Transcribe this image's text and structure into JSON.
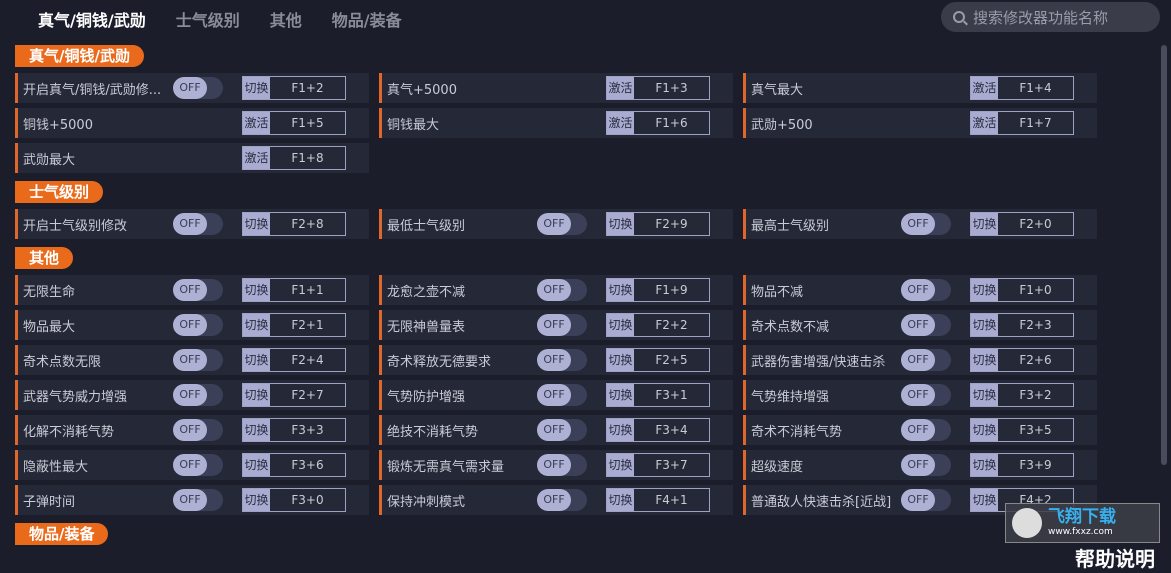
{
  "tabs": [
    "真气/铜钱/武勋",
    "士气级别",
    "其他",
    "物品/装备"
  ],
  "search": {
    "placeholder": "搜索修改器功能名称"
  },
  "sections": [
    {
      "title": "真气/铜钱/武勋",
      "items": [
        {
          "label": "开启真气/铜钱/武勋修...",
          "toggle": "OFF",
          "action": "切换",
          "key": "F1+2"
        },
        {
          "label": "真气+5000",
          "action": "激活",
          "key": "F1+3"
        },
        {
          "label": "真气最大",
          "action": "激活",
          "key": "F1+4"
        },
        {
          "label": "铜钱+5000",
          "action": "激活",
          "key": "F1+5"
        },
        {
          "label": "铜钱最大",
          "action": "激活",
          "key": "F1+6"
        },
        {
          "label": "武勋+500",
          "action": "激活",
          "key": "F1+7"
        },
        {
          "label": "武勋最大",
          "action": "激活",
          "key": "F1+8"
        }
      ]
    },
    {
      "title": "士气级别",
      "items": [
        {
          "label": "开启士气级别修改",
          "toggle": "OFF",
          "action": "切换",
          "key": "F2+8"
        },
        {
          "label": "最低士气级别",
          "toggle": "OFF",
          "action": "切换",
          "key": "F2+9"
        },
        {
          "label": "最高士气级别",
          "toggle": "OFF",
          "action": "切换",
          "key": "F2+0"
        }
      ]
    },
    {
      "title": "其他",
      "items": [
        {
          "label": "无限生命",
          "toggle": "OFF",
          "action": "切换",
          "key": "F1+1"
        },
        {
          "label": "龙愈之壶不减",
          "toggle": "OFF",
          "action": "切换",
          "key": "F1+9"
        },
        {
          "label": "物品不减",
          "toggle": "OFF",
          "action": "切换",
          "key": "F1+0"
        },
        {
          "label": "物品最大",
          "toggle": "OFF",
          "action": "切换",
          "key": "F2+1"
        },
        {
          "label": "无限神兽量表",
          "toggle": "OFF",
          "action": "切换",
          "key": "F2+2"
        },
        {
          "label": "奇术点数不减",
          "toggle": "OFF",
          "action": "切换",
          "key": "F2+3"
        },
        {
          "label": "奇术点数无限",
          "toggle": "OFF",
          "action": "切换",
          "key": "F2+4"
        },
        {
          "label": "奇术释放无德要求",
          "toggle": "OFF",
          "action": "切换",
          "key": "F2+5"
        },
        {
          "label": "武器伤害增强/快速击杀",
          "toggle": "OFF",
          "action": "切换",
          "key": "F2+6"
        },
        {
          "label": "武器气势威力增强",
          "toggle": "OFF",
          "action": "切换",
          "key": "F2+7"
        },
        {
          "label": "气势防护增强",
          "toggle": "OFF",
          "action": "切换",
          "key": "F3+1"
        },
        {
          "label": "气势维持增强",
          "toggle": "OFF",
          "action": "切换",
          "key": "F3+2"
        },
        {
          "label": "化解不消耗气势",
          "toggle": "OFF",
          "action": "切换",
          "key": "F3+3"
        },
        {
          "label": "绝技不消耗气势",
          "toggle": "OFF",
          "action": "切换",
          "key": "F3+4"
        },
        {
          "label": "奇术不消耗气势",
          "toggle": "OFF",
          "action": "切换",
          "key": "F3+5"
        },
        {
          "label": "隐蔽性最大",
          "toggle": "OFF",
          "action": "切换",
          "key": "F3+6"
        },
        {
          "label": "锻炼无需真气需求量",
          "toggle": "OFF",
          "action": "切换",
          "key": "F3+7"
        },
        {
          "label": "超级速度",
          "toggle": "OFF",
          "action": "切换",
          "key": "F3+9"
        },
        {
          "label": "子弹时间",
          "toggle": "OFF",
          "action": "切换",
          "key": "F3+0"
        },
        {
          "label": "保持冲刺模式",
          "toggle": "OFF",
          "action": "切换",
          "key": "F4+1"
        },
        {
          "label": "普通敌人快速击杀[近战]",
          "toggle": "OFF",
          "action": "切换",
          "key": "F4+2"
        }
      ]
    },
    {
      "title": "物品/装备",
      "items": []
    }
  ],
  "watermark": {
    "name": "飞翔下载",
    "url": "www.fxxz.com"
  },
  "help": "帮助说明",
  "colors": {
    "accent": "#ea6a1c",
    "background": "#1b1d2b",
    "cell": "#252837"
  }
}
